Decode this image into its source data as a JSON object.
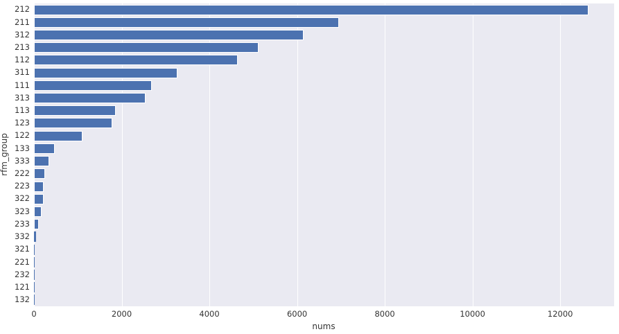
{
  "chart_data": {
    "type": "bar",
    "orientation": "horizontal",
    "title": "",
    "xlabel": "nums",
    "ylabel": "rfm_group",
    "categories": [
      "212",
      "211",
      "312",
      "213",
      "112",
      "311",
      "111",
      "313",
      "113",
      "123",
      "122",
      "133",
      "333",
      "222",
      "223",
      "322",
      "323",
      "233",
      "332",
      "321",
      "221",
      "232",
      "121",
      "132"
    ],
    "values": [
      12650,
      6950,
      6150,
      5120,
      4640,
      3270,
      2680,
      2540,
      1870,
      1790,
      1110,
      480,
      350,
      245,
      225,
      215,
      180,
      110,
      40,
      14,
      10,
      8,
      6,
      4
    ],
    "xticks": [
      0,
      2000,
      4000,
      6000,
      8000,
      10000,
      12000
    ],
    "xlim": [
      0,
      13230
    ],
    "grid": "vertical white gridlines, seaborn darkgrid style",
    "legend": "none",
    "colors": {
      "bar": "#4c72b0",
      "plot_background": "#eaeaf2",
      "figure_background": "#ffffff",
      "gridline": "#ffffff",
      "tick_text": "#333333"
    }
  }
}
